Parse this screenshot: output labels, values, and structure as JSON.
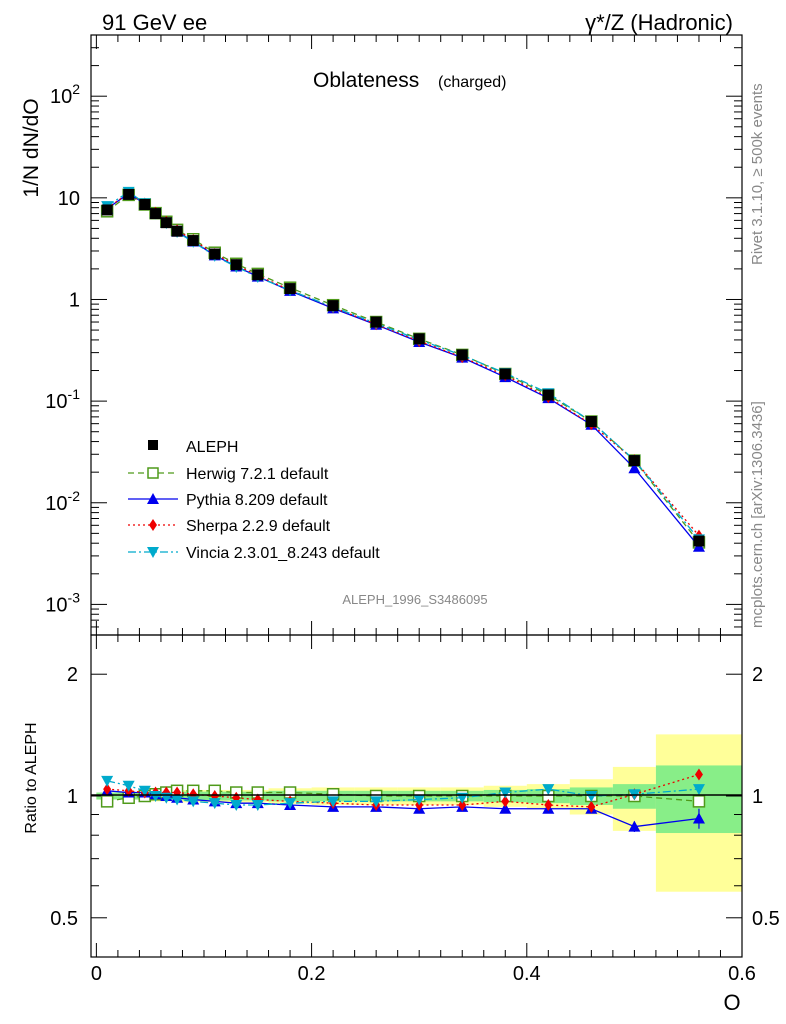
{
  "header": {
    "energy_label": "91 GeV ee",
    "process_label": "γ*/Z (Hadronic)"
  },
  "side_text": {
    "rivet": "Rivet 3.1.10, ≥ 500k events",
    "mcplots": "mcplots.cern.ch [arXiv:1306.3436]"
  },
  "chart_data": {
    "type": "line",
    "title": "Oblateness",
    "subtitle": "(charged)",
    "analysis": "ALEPH_1996_S3486095",
    "xlabel": "O",
    "ylabel": "1/N dN/dO",
    "ratio_ylabel": "Ratio to ALEPH",
    "xlim": [
      -0.005,
      0.6
    ],
    "ylim": [
      0.0005,
      400
    ],
    "ratio_ylim": [
      0.4,
      2.5
    ],
    "yscale": "log",
    "x_ticks": [
      "0",
      "0.2",
      "0.4",
      "0.6"
    ],
    "main_y_ticks": [
      {
        "base": "10",
        "exp": "-3"
      },
      {
        "base": "10",
        "exp": "-2"
      },
      {
        "base": "10",
        "exp": "-1"
      },
      {
        "base": "1",
        "exp": ""
      },
      {
        "base": "10",
        "exp": ""
      },
      {
        "base": "10",
        "exp": "2"
      }
    ],
    "ratio_y_ticks": [
      "0.5",
      "1",
      "2"
    ],
    "x": [
      0.01,
      0.03,
      0.045,
      0.055,
      0.065,
      0.075,
      0.09,
      0.11,
      0.13,
      0.15,
      0.18,
      0.22,
      0.26,
      0.3,
      0.34,
      0.38,
      0.42,
      0.46,
      0.5,
      0.56
    ],
    "bin_edges": [
      0.0,
      0.02,
      0.04,
      0.05,
      0.06,
      0.07,
      0.08,
      0.1,
      0.12,
      0.14,
      0.16,
      0.2,
      0.24,
      0.28,
      0.32,
      0.36,
      0.4,
      0.44,
      0.48,
      0.52,
      0.6
    ],
    "data": {
      "name": "ALEPH",
      "color": "#000000",
      "values": [
        7.6,
        10.8,
        8.6,
        7.0,
        5.7,
        4.7,
        3.8,
        2.8,
        2.2,
        1.75,
        1.28,
        0.87,
        0.6,
        0.41,
        0.285,
        0.185,
        0.115,
        0.063,
        0.026,
        0.0042
      ],
      "band_inner": [
        0.02,
        0.02,
        0.02,
        0.02,
        0.02,
        0.02,
        0.025,
        0.025,
        0.025,
        0.025,
        0.03,
        0.03,
        0.03,
        0.03,
        0.03,
        0.035,
        0.04,
        0.05,
        0.07,
        0.19
      ],
      "band_outer": [
        0.02,
        0.02,
        0.03,
        0.03,
        0.03,
        0.03,
        0.035,
        0.035,
        0.035,
        0.035,
        0.045,
        0.05,
        0.05,
        0.05,
        0.05,
        0.06,
        0.07,
        0.1,
        0.18,
        0.42
      ]
    },
    "series": [
      {
        "name": "Herwig 7.2.1 default",
        "color": "#4f9a1a",
        "marker": "open-square",
        "dash": "6,4",
        "ratio": [
          0.97,
          0.99,
          1.0,
          1.01,
          1.02,
          1.03,
          1.03,
          1.03,
          1.02,
          1.02,
          1.02,
          1.01,
          1.0,
          1.0,
          1.0,
          1.0,
          1.0,
          1.0,
          1.0,
          0.97
        ]
      },
      {
        "name": "Pythia 8.209 default",
        "color": "#0000ee",
        "marker": "triangle-up",
        "dash": "",
        "ratio": [
          1.03,
          1.02,
          1.02,
          1.01,
          1.0,
          0.99,
          0.98,
          0.97,
          0.96,
          0.96,
          0.95,
          0.94,
          0.94,
          0.93,
          0.94,
          0.93,
          0.93,
          0.93,
          0.84,
          0.88
        ],
        "ratio_err": [
          0.0,
          0.0,
          0.0,
          0.0,
          0.0,
          0.0,
          0.0,
          0.0,
          0.0,
          0.0,
          0.0,
          0.0,
          0.0,
          0.0,
          0.0,
          0.0,
          0.0,
          0.0,
          0.025,
          0.05
        ]
      },
      {
        "name": "Sherpa 2.2.9 default",
        "color": "#ee0000",
        "marker": "diamond",
        "dash": "2,3",
        "ratio": [
          1.04,
          1.03,
          1.02,
          1.02,
          1.02,
          1.02,
          1.01,
          1.0,
          0.99,
          0.98,
          0.97,
          0.96,
          0.95,
          0.95,
          0.95,
          0.97,
          0.95,
          0.94,
          1.01,
          1.13
        ]
      },
      {
        "name": "Vincia 2.3.01_8.243 default",
        "color": "#00aacc",
        "marker": "triangle-down",
        "dash": "8,3,2,3",
        "ratio": [
          1.09,
          1.06,
          1.03,
          1.0,
          0.99,
          0.98,
          0.97,
          0.96,
          0.95,
          0.95,
          0.96,
          0.97,
          0.97,
          0.98,
          0.99,
          1.02,
          1.04,
          1.0,
          1.01,
          1.04
        ]
      }
    ]
  }
}
